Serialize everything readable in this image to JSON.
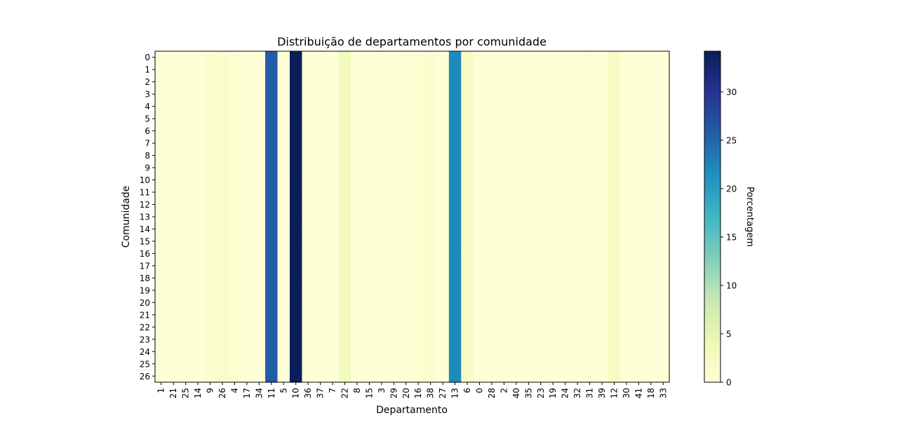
{
  "chart_data": {
    "type": "heatmap",
    "title": "Distribuição de departamentos por comunidade",
    "xlabel": "Departamento",
    "ylabel": "Comunidade",
    "x_categories": [
      "1",
      "21",
      "25",
      "14",
      "9",
      "26",
      "4",
      "17",
      "34",
      "11",
      "5",
      "10",
      "36",
      "37",
      "7",
      "22",
      "8",
      "15",
      "3",
      "29",
      "20",
      "16",
      "38",
      "27",
      "13",
      "6",
      "0",
      "28",
      "2",
      "40",
      "35",
      "23",
      "19",
      "24",
      "32",
      "31",
      "39",
      "12",
      "30",
      "41",
      "18",
      "33"
    ],
    "y_categories": [
      "0",
      "1",
      "2",
      "3",
      "4",
      "5",
      "6",
      "7",
      "8",
      "9",
      "10",
      "11",
      "12",
      "13",
      "14",
      "15",
      "16",
      "17",
      "18",
      "19",
      "20",
      "21",
      "22",
      "23",
      "24",
      "25",
      "26"
    ],
    "column_values": [
      0.3,
      0.3,
      0.3,
      0.3,
      1.0,
      1.5,
      0.8,
      0.3,
      0.3,
      26.0,
      0.3,
      34.0,
      0.3,
      0.3,
      0.3,
      3.0,
      0.3,
      0.3,
      0.3,
      0.3,
      0.5,
      0.8,
      1.2,
      0.3,
      22.0,
      2.0,
      0.3,
      0.3,
      0.3,
      0.3,
      0.3,
      0.3,
      0.3,
      0.3,
      0.3,
      0.6,
      0.3,
      2.3,
      0.3,
      0.3,
      0.3,
      0.3
    ],
    "note_rows_identical": true,
    "colormap": "YlGnBu",
    "colorbar": {
      "label": "Porcentagem",
      "min": 0,
      "max": 34.2,
      "ticks": [
        0,
        5,
        10,
        15,
        20,
        25,
        30
      ]
    }
  }
}
